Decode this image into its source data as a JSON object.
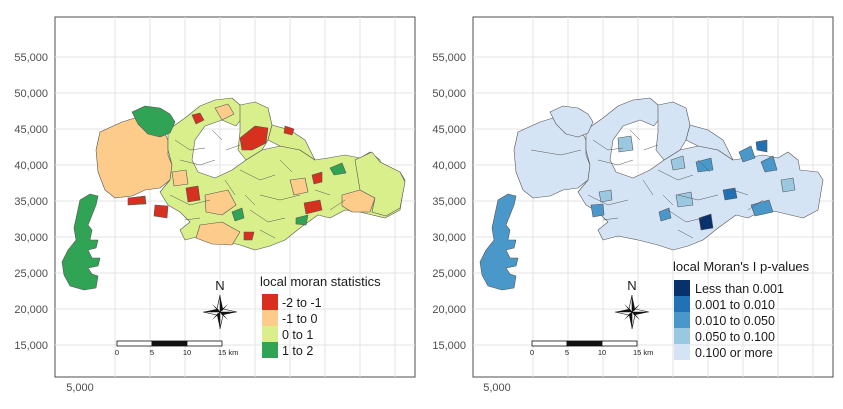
{
  "maps": [
    {
      "y_ticks": [
        "55,000",
        "50,000",
        "45,000",
        "40,000",
        "35,000",
        "30,000",
        "25,000",
        "20,000",
        "15,000"
      ],
      "x_ticks": [
        "5,000"
      ],
      "legend": {
        "title": "local moran statistics",
        "items": [
          {
            "label": "-2 to -1",
            "color": "#d7301f"
          },
          {
            "label": "-1 to 0",
            "color": "#fdcb8a"
          },
          {
            "label": "0 to 1",
            "color": "#d9ef8b"
          },
          {
            "label": "1 to 2",
            "color": "#31a354"
          }
        ]
      },
      "north_label": "N",
      "scalebar": {
        "labels": [
          "0",
          "5",
          "10",
          "15 km"
        ]
      }
    },
    {
      "y_ticks": [
        "55,000",
        "50,000",
        "45,000",
        "40,000",
        "35,000",
        "30,000",
        "25,000",
        "20,000",
        "15,000"
      ],
      "x_ticks": [
        "5,000"
      ],
      "legend": {
        "title": "local Moran's I p-values",
        "items": [
          {
            "label": "Less than 0.001",
            "color": "#08306b"
          },
          {
            "label": "0.001 to 0.010",
            "color": "#2171b5"
          },
          {
            "label": "0.010 to 0.050",
            "color": "#4a98c9"
          },
          {
            "label": "0.050 to 0.100",
            "color": "#9ac8e0"
          },
          {
            "label": "0.100 or more",
            "color": "#d4e4f4"
          }
        ]
      },
      "north_label": "N",
      "scalebar": {
        "labels": [
          "0",
          "5",
          "10",
          "15 km"
        ]
      }
    }
  ]
}
